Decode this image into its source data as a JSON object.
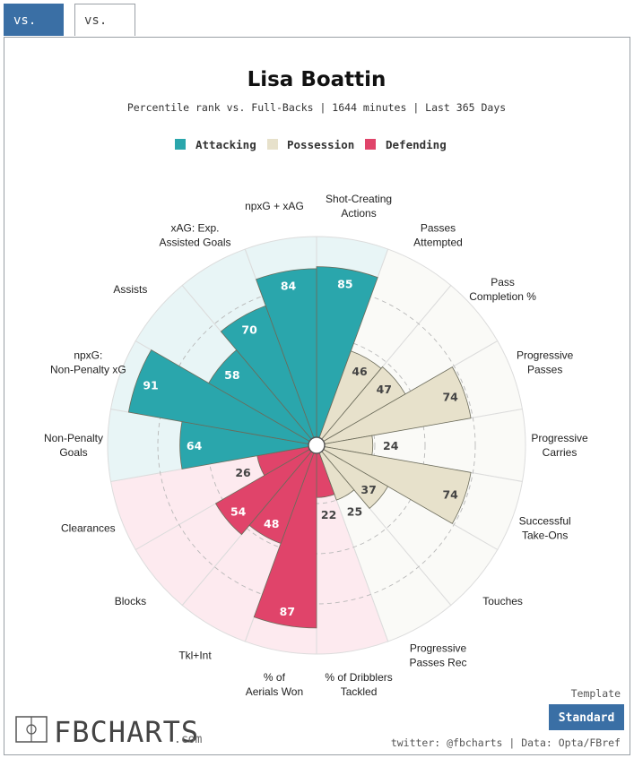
{
  "tabs": [
    {
      "label": "vs. FB",
      "active": true
    },
    {
      "label": "vs. CB",
      "active": false
    }
  ],
  "colors": {
    "attacking": "#2aa6ac",
    "attacking_bg": "#e8f5f6",
    "possession": "#e7e1cb",
    "possession_bg": "#fafaf7",
    "defending": "#e0446a",
    "defending_bg": "#fdeaef",
    "tab_active": "#3a6fa5",
    "button": "#3a6fa5"
  },
  "chart_data": {
    "type": "polar-bar",
    "title": "Lisa Boattin",
    "subtitle": "Percentile rank vs. Full-Backs | 1644 minutes | Last 365 Days",
    "rlim": [
      0,
      100
    ],
    "legend": [
      {
        "name": "Attacking",
        "key": "attacking"
      },
      {
        "name": "Possession",
        "key": "possession"
      },
      {
        "name": "Defending",
        "key": "defending"
      }
    ],
    "categories": [
      {
        "label": "Shot-Creating Actions",
        "value": 85,
        "group": "attacking"
      },
      {
        "label": "Passes Attempted",
        "value": 46,
        "group": "possession"
      },
      {
        "label": "Pass Completion %",
        "value": 47,
        "group": "possession"
      },
      {
        "label": "Progressive Passes",
        "value": 74,
        "group": "possession"
      },
      {
        "label": "Progressive Carries",
        "value": 24,
        "group": "possession"
      },
      {
        "label": "Successful Take-Ons",
        "value": 74,
        "group": "possession"
      },
      {
        "label": "Touches",
        "value": 37,
        "group": "possession"
      },
      {
        "label": "Progressive Passes Rec",
        "value": 25,
        "group": "possession"
      },
      {
        "label": "% of Dribblers Tackled",
        "value": 22,
        "group": "defending"
      },
      {
        "label": "% of Aerials Won",
        "value": 87,
        "group": "defending"
      },
      {
        "label": "Tkl+Int",
        "value": 48,
        "group": "defending"
      },
      {
        "label": "Blocks",
        "value": 54,
        "group": "defending"
      },
      {
        "label": "Clearances",
        "value": 26,
        "group": "defending"
      },
      {
        "label": "Non-Penalty Goals",
        "value": 64,
        "group": "attacking"
      },
      {
        "label": "npxG: Non-Penalty xG",
        "value": 91,
        "group": "attacking"
      },
      {
        "label": "Assists",
        "value": 58,
        "group": "attacking"
      },
      {
        "label": "xAG: Exp. Assisted Goals",
        "value": 70,
        "group": "attacking"
      },
      {
        "label": "npxG + xAG",
        "value": 84,
        "group": "attacking"
      }
    ]
  },
  "footer": {
    "template_label": "Template",
    "template_button": "Standard",
    "credit": "twitter: @fbcharts | Data: Opta/FBref",
    "brand": "FBCHARTS",
    "brand_suffix": ".com"
  }
}
